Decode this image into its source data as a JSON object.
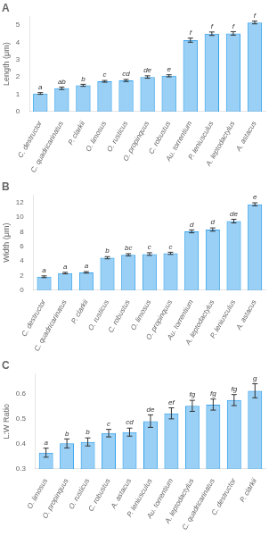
{
  "chart_data": [
    {
      "type": "bar",
      "title": "A",
      "categories": [
        "C. destructor",
        "C. quadricarinatus",
        "P. clarkii",
        "O. limosus",
        "O. rusticus",
        "O. propinquus",
        "C. robustus",
        "Au. torrentium",
        "P. leniusculus",
        "A. leptodactylus",
        "A. astacus"
      ],
      "values": [
        1.05,
        1.35,
        1.52,
        1.75,
        1.8,
        2.0,
        2.07,
        4.13,
        4.5,
        4.52,
        5.15
      ],
      "errors": [
        0.05,
        0.07,
        0.06,
        0.05,
        0.06,
        0.07,
        0.06,
        0.12,
        0.1,
        0.1,
        0.08
      ],
      "letters": [
        "a",
        "ab",
        "b",
        "c",
        "cd",
        "de",
        "e",
        "f",
        "f",
        "f",
        "f"
      ],
      "ylabel": "Length (μm)",
      "ylim": [
        0,
        5.5
      ],
      "yticks": [
        0,
        1,
        2,
        3,
        4,
        5
      ],
      "grid": false
    },
    {
      "type": "bar",
      "title": "B",
      "categories": [
        "C. destructor",
        "C. quadricarinatus",
        "P. clarkii",
        "O. rusticus",
        "C. robustus",
        "O. limosus",
        "O. propinquus",
        "Au. torrentium",
        "A. leptodactylus",
        "P. leniusculus",
        "A. astacus"
      ],
      "values": [
        1.85,
        2.35,
        2.45,
        4.45,
        4.85,
        4.95,
        5.05,
        8.05,
        8.3,
        9.45,
        11.75
      ],
      "errors": [
        0.12,
        0.1,
        0.1,
        0.15,
        0.15,
        0.18,
        0.15,
        0.2,
        0.22,
        0.25,
        0.2
      ],
      "letters": [
        "a",
        "a",
        "a",
        "b",
        "bc",
        "c",
        "c",
        "d",
        "d",
        "de",
        "e"
      ],
      "ylabel": "Width (μm)",
      "ylim": [
        0,
        13
      ],
      "yticks": [
        0,
        2,
        4,
        6,
        8,
        10,
        12
      ],
      "grid": false
    },
    {
      "type": "bar",
      "title": "C",
      "categories": [
        "O. limosus",
        "O. propinquus",
        "O. rusticus",
        "C. robustus",
        "A. astacus",
        "P. leniusculus",
        "Au. torrentium",
        "A. leptodactylus",
        "C. quadricarinatus",
        "C. destructor",
        "P. clarkii"
      ],
      "values": [
        0.365,
        0.402,
        0.408,
        0.443,
        0.447,
        0.491,
        0.522,
        0.552,
        0.557,
        0.575,
        0.612
      ],
      "errors": [
        0.018,
        0.018,
        0.016,
        0.015,
        0.016,
        0.025,
        0.022,
        0.022,
        0.022,
        0.022,
        0.028
      ],
      "letters": [
        "a",
        "b",
        "b",
        "c",
        "cd",
        "de",
        "ef",
        "fg",
        "fg",
        "fg",
        "g"
      ],
      "ylabel": "L:W Ratio",
      "ylim": [
        0.3,
        0.68
      ],
      "yticks": [
        0.3,
        0.4,
        0.5,
        0.6
      ],
      "grid": false
    }
  ]
}
